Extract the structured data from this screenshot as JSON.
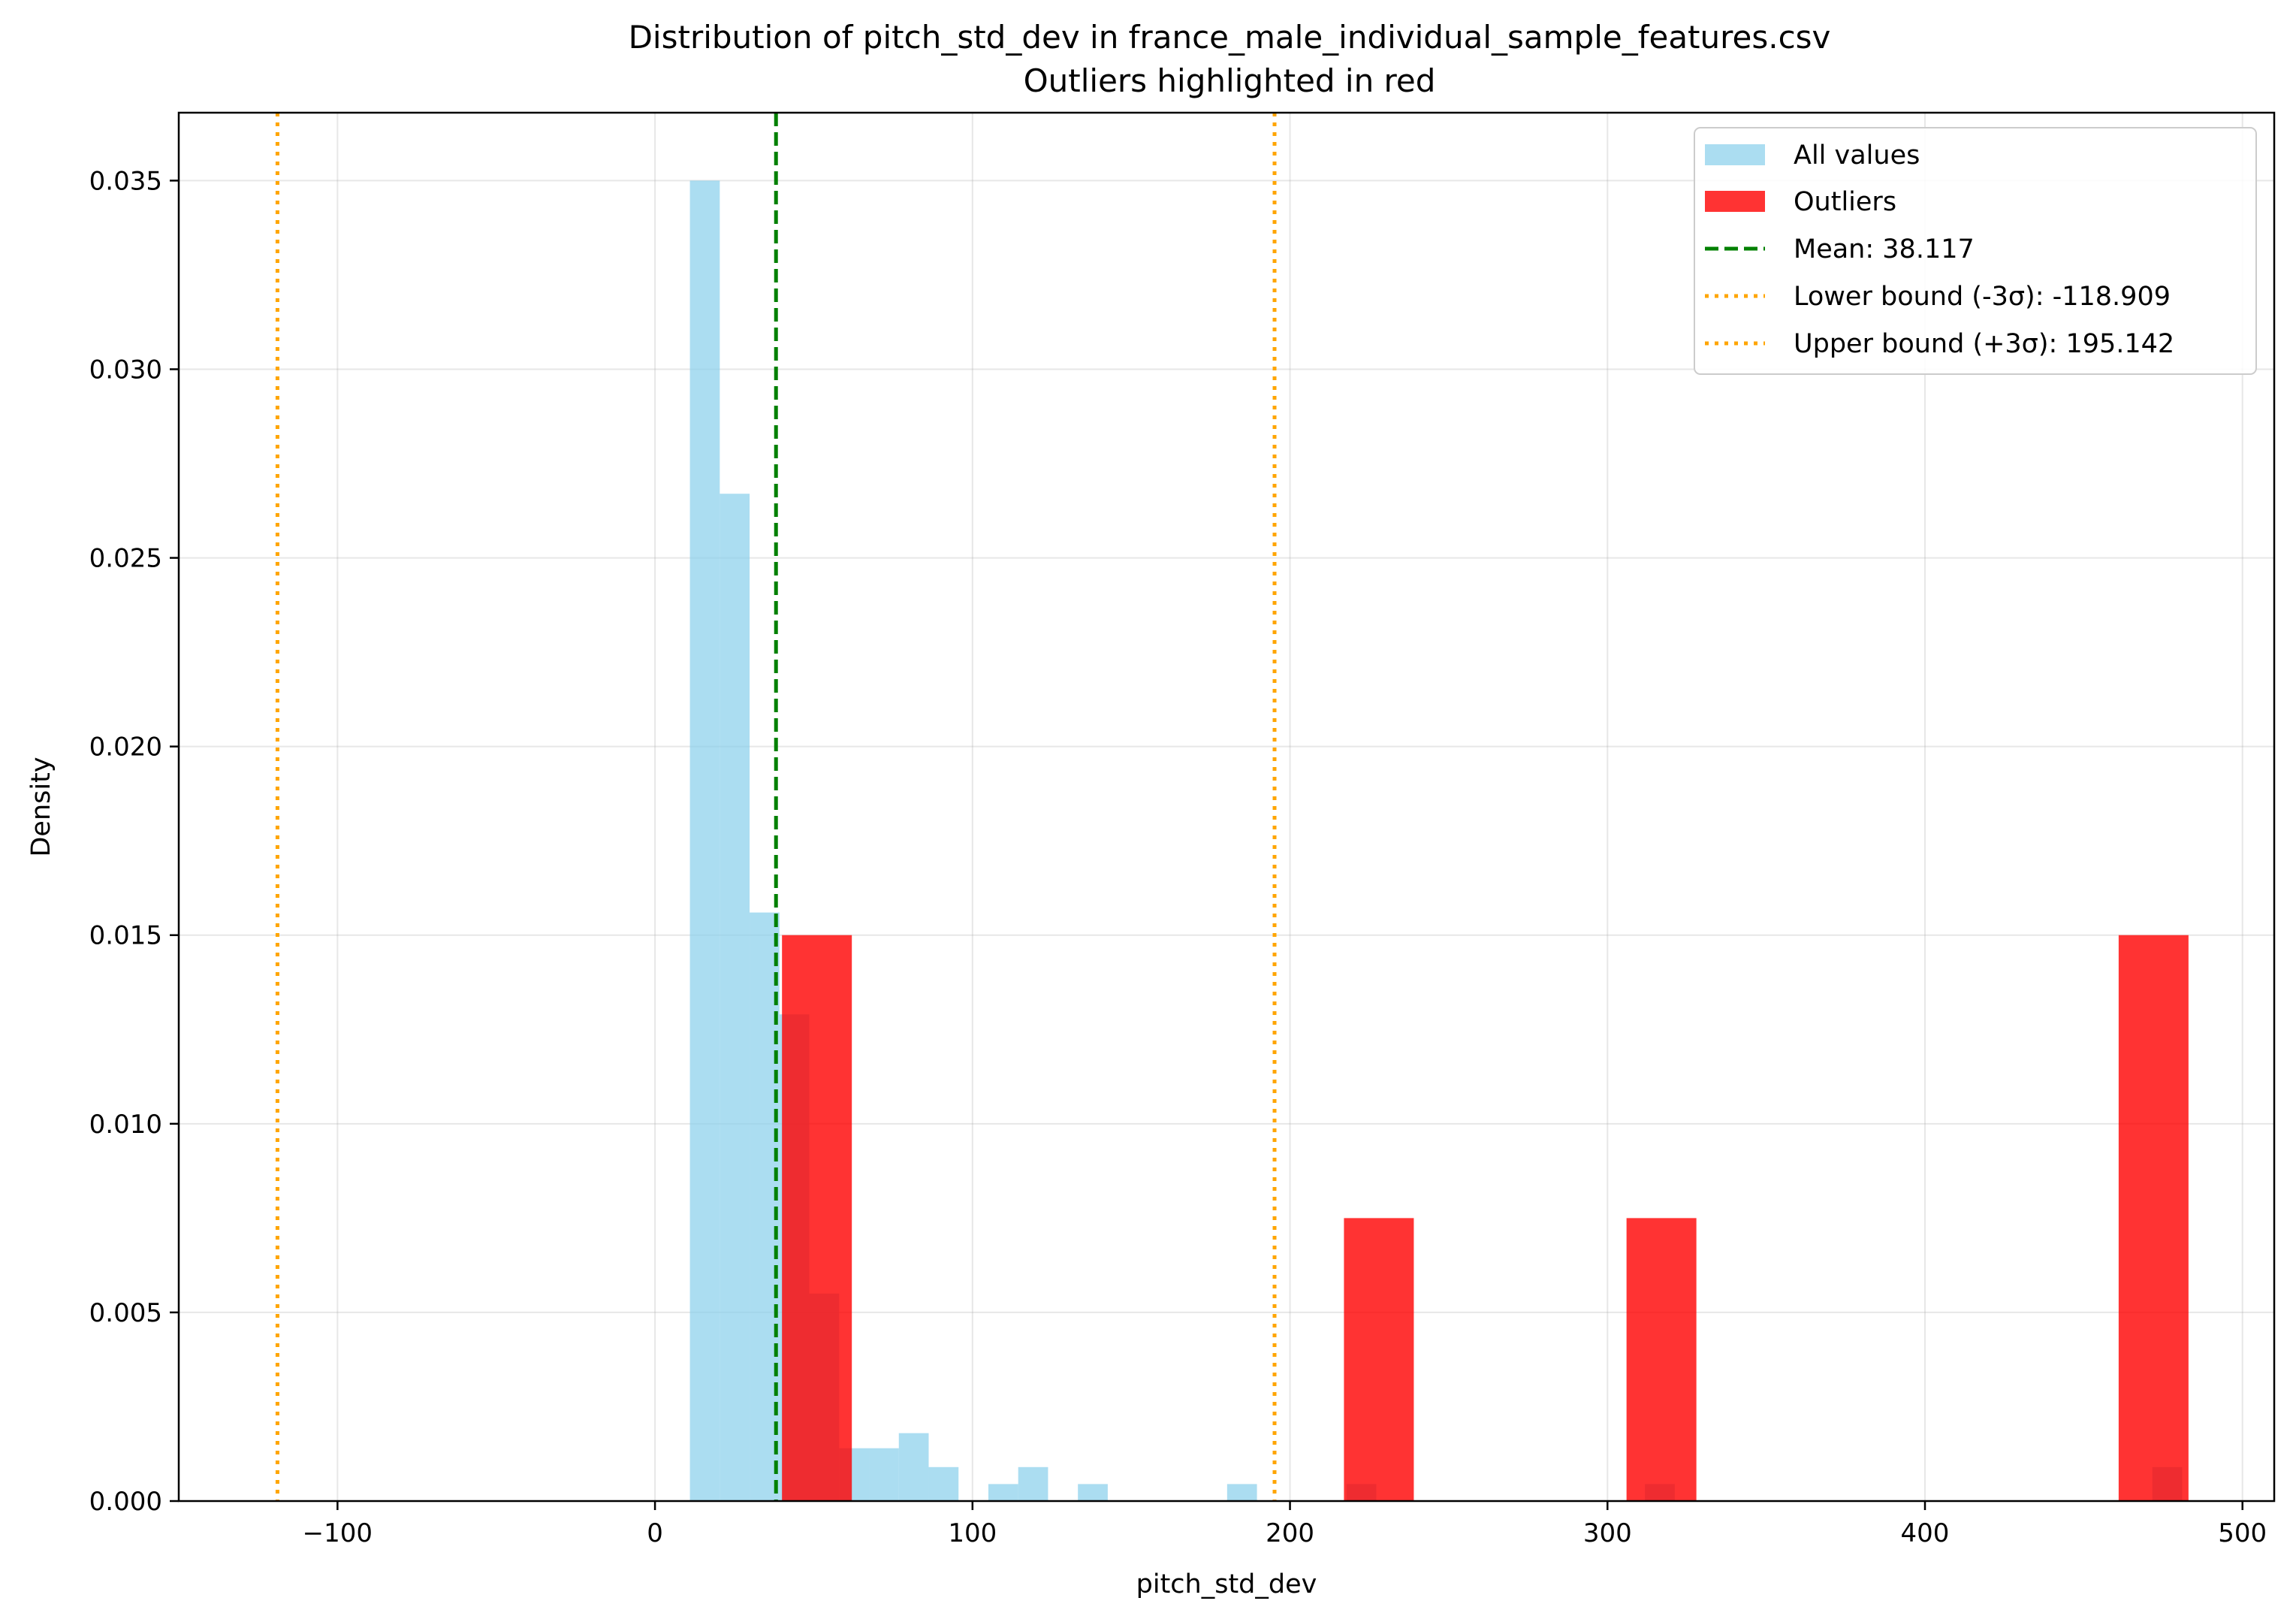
{
  "chart_data": {
    "type": "bar",
    "title_line1": "Distribution of pitch_std_dev in france_male_individual_sample_features.csv",
    "title_line2": "Outliers highlighted in red",
    "xlabel": "pitch_std_dev",
    "ylabel": "Density",
    "xlim": [
      -150,
      510
    ],
    "ylim": [
      0,
      0.0368
    ],
    "xticks": [
      -100,
      0,
      100,
      200,
      300,
      400,
      500
    ],
    "xtick_labels": [
      "−100",
      "0",
      "100",
      "200",
      "300",
      "400",
      "500"
    ],
    "yticks": [
      0.0,
      0.005,
      0.01,
      0.015,
      0.02,
      0.025,
      0.03,
      0.035
    ],
    "ytick_labels": [
      "0.000",
      "0.005",
      "0.010",
      "0.015",
      "0.020",
      "0.025",
      "0.030",
      "0.035"
    ],
    "grid": true,
    "legend_position": "top-right",
    "series": [
      {
        "name": "All values",
        "color": "#87CEEB",
        "bins": [
          {
            "x0": 11.0,
            "x1": 20.4,
            "density": 0.035
          },
          {
            "x0": 20.4,
            "x1": 29.8,
            "density": 0.0267
          },
          {
            "x0": 29.8,
            "x1": 39.2,
            "density": 0.0156
          },
          {
            "x0": 39.2,
            "x1": 48.6,
            "density": 0.0129
          },
          {
            "x0": 48.6,
            "x1": 58.0,
            "density": 0.0055
          },
          {
            "x0": 58.0,
            "x1": 67.4,
            "density": 0.0014
          },
          {
            "x0": 67.4,
            "x1": 76.8,
            "density": 0.0014
          },
          {
            "x0": 76.8,
            "x1": 86.2,
            "density": 0.0018
          },
          {
            "x0": 86.2,
            "x1": 95.6,
            "density": 0.0009
          },
          {
            "x0": 105.0,
            "x1": 114.4,
            "density": 0.00045
          },
          {
            "x0": 114.4,
            "x1": 123.8,
            "density": 0.0009
          },
          {
            "x0": 133.2,
            "x1": 142.6,
            "density": 0.00045
          },
          {
            "x0": 180.2,
            "x1": 189.6,
            "density": 0.00045
          },
          {
            "x0": 217.8,
            "x1": 227.2,
            "density": 0.00045
          },
          {
            "x0": 311.8,
            "x1": 321.2,
            "density": 0.00045
          },
          {
            "x0": 471.6,
            "x1": 481.0,
            "density": 0.0009
          }
        ]
      },
      {
        "name": "Outliers",
        "color": "#FF0000",
        "bins": [
          {
            "x0": 40.0,
            "x1": 62.0,
            "density": 0.015
          },
          {
            "x0": 217.0,
            "x1": 239.0,
            "density": 0.0075
          },
          {
            "x0": 306.0,
            "x1": 328.0,
            "density": 0.0075
          },
          {
            "x0": 461.0,
            "x1": 483.0,
            "density": 0.015
          }
        ]
      }
    ],
    "reference_lines": [
      {
        "label": "Mean: 38.117",
        "value": 38.117,
        "color": "#008000",
        "style": "dashed"
      },
      {
        "label": "Lower bound (-3σ): -118.909",
        "value": -118.909,
        "color": "#FFA500",
        "style": "dotted"
      },
      {
        "label": "Upper bound (+3σ): 195.142",
        "value": 195.142,
        "color": "#FFA500",
        "style": "dotted"
      }
    ]
  }
}
